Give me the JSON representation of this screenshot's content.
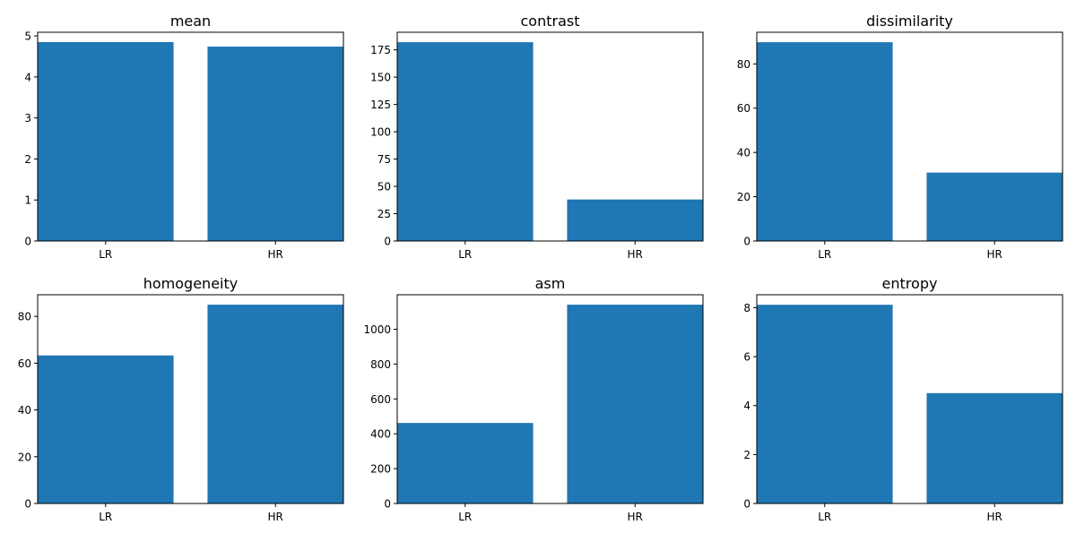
{
  "chart_data": [
    {
      "type": "bar",
      "title": "mean",
      "categories": [
        "LR",
        "HR"
      ],
      "values": [
        4.85,
        4.74
      ],
      "ylim": [
        0,
        5.09
      ],
      "yticks": [
        0,
        1,
        2,
        3,
        4,
        5
      ],
      "color": "#1f77b4"
    },
    {
      "type": "bar",
      "title": "contrast",
      "categories": [
        "LR",
        "HR"
      ],
      "values": [
        182,
        38
      ],
      "ylim": [
        0,
        191.1
      ],
      "yticks": [
        0,
        25,
        50,
        75,
        100,
        125,
        150,
        175
      ],
      "color": "#1f77b4"
    },
    {
      "type": "bar",
      "title": "dissimilarity",
      "categories": [
        "LR",
        "HR"
      ],
      "values": [
        89.8,
        30.9
      ],
      "ylim": [
        0,
        94.3
      ],
      "yticks": [
        0,
        20,
        40,
        60,
        80
      ],
      "color": "#1f77b4"
    },
    {
      "type": "bar",
      "title": "homogeneity",
      "categories": [
        "LR",
        "HR"
      ],
      "values": [
        63.3,
        85.0
      ],
      "ylim": [
        0,
        89.25
      ],
      "yticks": [
        0,
        20,
        40,
        60,
        80
      ],
      "color": "#1f77b4"
    },
    {
      "type": "bar",
      "title": "asm",
      "categories": [
        "LR",
        "HR"
      ],
      "values": [
        462,
        1141
      ],
      "ylim": [
        0,
        1198
      ],
      "yticks": [
        0,
        200,
        400,
        600,
        800,
        1000
      ],
      "color": "#1f77b4"
    },
    {
      "type": "bar",
      "title": "entropy",
      "categories": [
        "LR",
        "HR"
      ],
      "values": [
        8.12,
        4.51
      ],
      "ylim": [
        0,
        8.53
      ],
      "yticks": [
        0,
        2,
        4,
        6,
        8
      ],
      "color": "#1f77b4"
    }
  ]
}
